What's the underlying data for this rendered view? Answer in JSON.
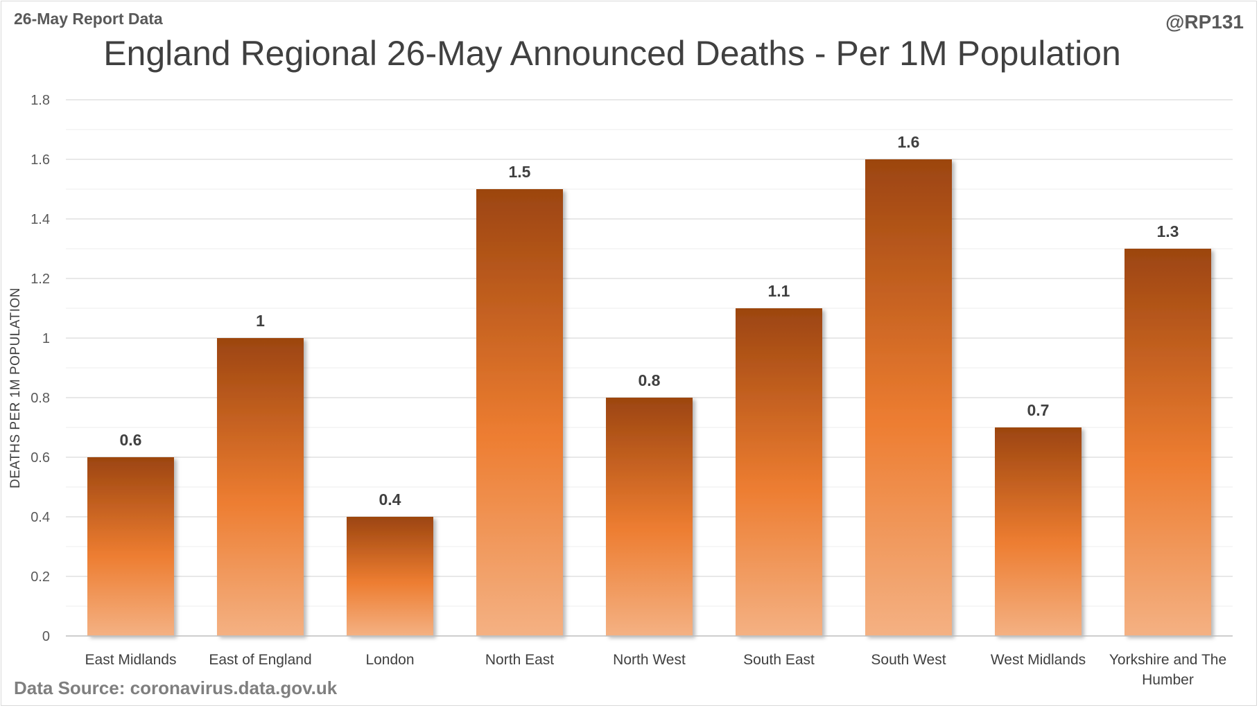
{
  "header": {
    "report_label": "26-May Report Data",
    "author": "@RP131"
  },
  "footer": {
    "source": "Data Source: coronavirus.data.gov.uk"
  },
  "colors": {
    "bar_top": "#9c4510",
    "bar_mid": "#ed7d31",
    "bar_bottom": "#f4b183",
    "gridline": "#d9d9d9"
  },
  "chart_data": {
    "type": "bar",
    "title": "England Regional 26-May Announced Deaths - Per 1M Population",
    "xlabel": "",
    "ylabel": "DEATHS PER 1M POPULATION",
    "categories": [
      [
        "East Midlands"
      ],
      [
        "East of England"
      ],
      [
        "London"
      ],
      [
        "North East"
      ],
      [
        "North West"
      ],
      [
        "South East"
      ],
      [
        "South West"
      ],
      [
        "West Midlands"
      ],
      [
        "Yorkshire and The",
        "Humber"
      ]
    ],
    "values": [
      0.6,
      1,
      0.4,
      1.5,
      0.8,
      1.1,
      1.6,
      0.7,
      1.3
    ],
    "data_labels": [
      "0.6",
      "1",
      "0.4",
      "1.5",
      "0.8",
      "1.1",
      "1.6",
      "0.7",
      "1.3"
    ],
    "ylim": [
      0,
      1.8
    ],
    "yticks": [
      "0",
      "0.2",
      "0.4",
      "0.6",
      "0.8",
      "1",
      "1.2",
      "1.4",
      "1.6",
      "1.8"
    ],
    "grid": true,
    "legend": "none"
  }
}
